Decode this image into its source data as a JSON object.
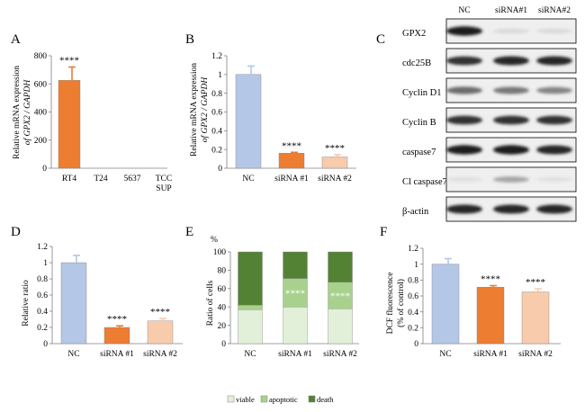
{
  "chart_data": [
    {
      "panel": "A",
      "type": "bar",
      "categories": [
        "RT4",
        "T24",
        "5637",
        "TCC SUP"
      ],
      "values": [
        625,
        0,
        0,
        0
      ],
      "errors": [
        95,
        0,
        0,
        0
      ],
      "significance": [
        "****",
        "",
        "",
        ""
      ],
      "ylabel_line1": "Relative  mRNA expression",
      "ylabel_line2": "of GPX2 / GAPDH",
      "yticks": [
        "0",
        "200",
        "400",
        "600",
        "800"
      ],
      "ylim": [
        0,
        800
      ],
      "bar_color": "#ED7D31"
    },
    {
      "panel": "B",
      "type": "bar",
      "categories": [
        "NC",
        "siRNA #1",
        "siRNA #2"
      ],
      "values": [
        1.0,
        0.16,
        0.12
      ],
      "errors": [
        0.09,
        0.01,
        0.025
      ],
      "significance": [
        "",
        "****",
        "****"
      ],
      "ylabel_line1": "Relative  mRNA expression",
      "ylabel_line2": "of GPX2 / GAPDH",
      "yticks": [
        "0",
        "0.2",
        "0.4",
        "0.6",
        "0.8",
        "1",
        "1.2"
      ],
      "ylim": [
        0,
        1.2
      ],
      "bar_colors": [
        "#B4C7E7",
        "#ED7D31",
        "#F8CBAD"
      ]
    },
    {
      "panel": "D",
      "type": "bar",
      "categories": [
        "NC",
        "siRNA #1",
        "siRNA #2"
      ],
      "values": [
        1.0,
        0.2,
        0.28
      ],
      "errors": [
        0.09,
        0.02,
        0.03
      ],
      "significance": [
        "",
        "****",
        "****"
      ],
      "ylabel": "Relative  ratio",
      "yticks": [
        "0",
        "0.2",
        "0.4",
        "0.6",
        "0.8",
        "1",
        "1.2"
      ],
      "ylim": [
        0,
        1.2
      ],
      "bar_colors": [
        "#B4C7E7",
        "#ED7D31",
        "#F8CBAD"
      ]
    },
    {
      "panel": "E",
      "type": "bar",
      "stacked": true,
      "categories": [
        "NC",
        "siRNA #1",
        "siRNA #2"
      ],
      "series": [
        {
          "name": "viable",
          "values": [
            37,
            40,
            38
          ],
          "color": "#E2F0D9"
        },
        {
          "name": "apoptotic",
          "values": [
            5,
            31,
            29
          ],
          "color": "#A9D18E"
        },
        {
          "name": "death",
          "values": [
            58,
            29,
            33
          ],
          "color": "#548235"
        }
      ],
      "significance": [
        "",
        "****",
        "****"
      ],
      "ylabel": "Ratio of cells",
      "unit": "%",
      "yticks": [
        "0",
        "20",
        "40",
        "60",
        "80",
        "100"
      ],
      "ylim": [
        0,
        100
      ],
      "legend_position": "bottom"
    },
    {
      "panel": "F",
      "type": "bar",
      "categories": [
        "NC",
        "siRNA #1",
        "siRNA #2"
      ],
      "values": [
        1.0,
        0.71,
        0.65
      ],
      "errors": [
        0.07,
        0.02,
        0.04
      ],
      "significance": [
        "",
        "****",
        "****"
      ],
      "ylabel_line1": "DCF fluorescence",
      "ylabel_line2": "(% of control)",
      "yticks": [
        "0",
        "0.2",
        "0.4",
        "0.6",
        "0.8",
        "1",
        "1.2"
      ],
      "ylim": [
        0,
        1.2
      ],
      "bar_colors": [
        "#B4C7E7",
        "#ED7D31",
        "#F8CBAD"
      ]
    }
  ],
  "western_blot": {
    "panel": "C",
    "lanes": [
      "NC",
      "siRNA#1",
      "siRNA#2"
    ],
    "proteins": [
      {
        "name": "GPX2",
        "intensity": [
          0.9,
          0.08,
          0.08
        ]
      },
      {
        "name": "cdc25B",
        "intensity": [
          0.8,
          0.85,
          0.85
        ]
      },
      {
        "name": "Cyclin D1",
        "intensity": [
          0.55,
          0.5,
          0.45
        ]
      },
      {
        "name": "Cyclin B",
        "intensity": [
          0.8,
          0.8,
          0.8
        ]
      },
      {
        "name": "caspase7",
        "intensity": [
          0.9,
          0.9,
          0.85
        ]
      },
      {
        "name": "Cl caspase7",
        "intensity": [
          0.05,
          0.3,
          0.05
        ]
      },
      {
        "name": "β-actin",
        "intensity": [
          0.85,
          0.85,
          0.85
        ]
      }
    ]
  }
}
